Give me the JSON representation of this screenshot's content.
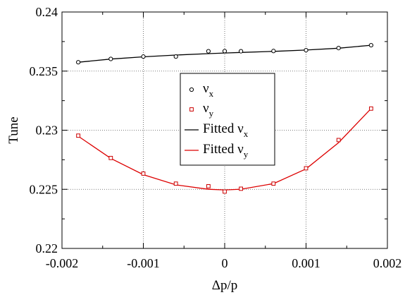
{
  "chart_data": {
    "type": "scatter",
    "xlabel": "Δp/p",
    "ylabel": "Tune",
    "xlim": [
      -0.002,
      0.002
    ],
    "ylim": [
      0.22,
      0.24
    ],
    "xticks": [
      -0.002,
      -0.001,
      0,
      0.001,
      0.002
    ],
    "xtick_labels": [
      "-0.002",
      "-0.001",
      "0",
      "0.001",
      "0.002"
    ],
    "yticks": [
      0.22,
      0.225,
      0.23,
      0.235,
      0.24
    ],
    "ytick_labels": [
      "0.22",
      "0.225",
      "0.23",
      "0.235",
      "0.24"
    ],
    "grid": true,
    "legend_position": "center",
    "series": [
      {
        "name": "νx",
        "name_main": "ν",
        "name_sub": "x",
        "kind": "points",
        "marker": "circle",
        "color": "#000000",
        "x": [
          -0.0018,
          -0.0014,
          -0.001,
          -0.0006,
          -0.0002,
          0.0,
          0.0002,
          0.0006,
          0.001,
          0.0014,
          0.0018
        ],
        "y": [
          0.23575,
          0.23603,
          0.23623,
          0.23623,
          0.23668,
          0.23669,
          0.23668,
          0.2367,
          0.23677,
          0.23695,
          0.23719
        ]
      },
      {
        "name": "νy",
        "name_main": "ν",
        "name_sub": "y",
        "kind": "points",
        "marker": "square",
        "color": "#cc0000",
        "x": [
          -0.0018,
          -0.0014,
          -0.001,
          -0.0006,
          -0.0002,
          0.0,
          0.0002,
          0.0006,
          0.001,
          0.0014,
          0.0018
        ],
        "y": [
          0.22954,
          0.22765,
          0.22633,
          0.22548,
          0.22526,
          0.22481,
          0.22505,
          0.22548,
          0.22678,
          0.22917,
          0.23183
        ]
      },
      {
        "name": "Fitted νx",
        "name_main": "Fitted ν",
        "name_sub": "x",
        "kind": "line",
        "color": "#000000",
        "x": [
          -0.0018,
          -0.0014,
          -0.001,
          -0.0006,
          -0.0002,
          0.0,
          0.0002,
          0.0006,
          0.001,
          0.0014,
          0.0018
        ],
        "y": [
          0.23575,
          0.23602,
          0.23621,
          0.23636,
          0.23648,
          0.23653,
          0.23658,
          0.23667,
          0.23678,
          0.23694,
          0.23719
        ]
      },
      {
        "name": "Fitted νy",
        "name_main": "Fitted ν",
        "name_sub": "y",
        "kind": "line",
        "color": "#dd0000",
        "x": [
          -0.0018,
          -0.0014,
          -0.001,
          -0.0006,
          -0.0002,
          0.0,
          0.0002,
          0.0006,
          0.001,
          0.0014,
          0.0018
        ],
        "y": [
          0.22949,
          0.22762,
          0.22624,
          0.22538,
          0.225,
          0.22495,
          0.22501,
          0.22548,
          0.22673,
          0.22895,
          0.23183
        ]
      }
    ]
  }
}
